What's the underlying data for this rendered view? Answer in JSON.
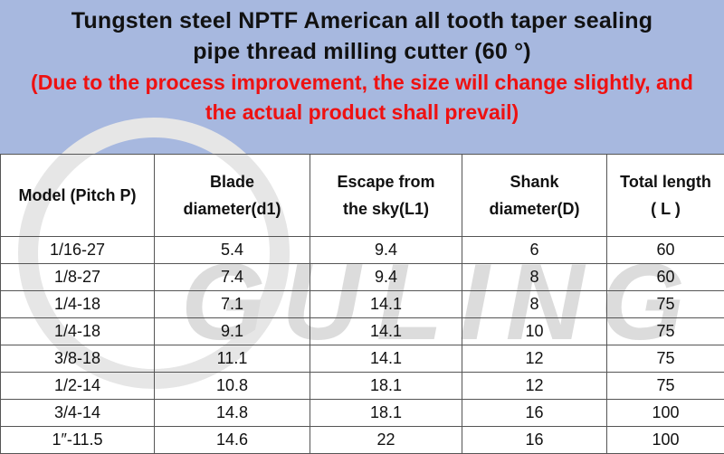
{
  "header": {
    "title_line1": "Tungsten steel NPTF American all tooth taper sealing",
    "title_line2": "pipe thread milling cutter (60 °)",
    "note_line1": "(Due to the process improvement, the size will change slightly, and",
    "note_line2": "the actual product shall prevail)"
  },
  "watermark": {
    "text": "GULING"
  },
  "table": {
    "headers": [
      {
        "line1": "Model (Pitch P)",
        "line2": ""
      },
      {
        "line1": "Blade",
        "line2": "diameter(d1)"
      },
      {
        "line1": "Escape from",
        "line2": "the sky(L1)"
      },
      {
        "line1": "Shank",
        "line2": "diameter(D)"
      },
      {
        "line1": "Total length",
        "line2": "( L )"
      }
    ],
    "rows": [
      [
        "1/16-27",
        "5.4",
        "9.4",
        "6",
        "60"
      ],
      [
        "1/8-27",
        "7.4",
        "9.4",
        "8",
        "60"
      ],
      [
        "1/4-18",
        "7.1",
        "14.1",
        "8",
        "75"
      ],
      [
        "1/4-18",
        "9.1",
        "14.1",
        "10",
        "75"
      ],
      [
        "3/8-18",
        "11.1",
        "14.1",
        "12",
        "75"
      ],
      [
        "1/2-14",
        "10.8",
        "18.1",
        "12",
        "75"
      ],
      [
        "3/4-14",
        "14.8",
        "18.1",
        "16",
        "100"
      ],
      [
        "1″-11.5",
        "14.6",
        "22",
        "16",
        "100"
      ]
    ]
  }
}
